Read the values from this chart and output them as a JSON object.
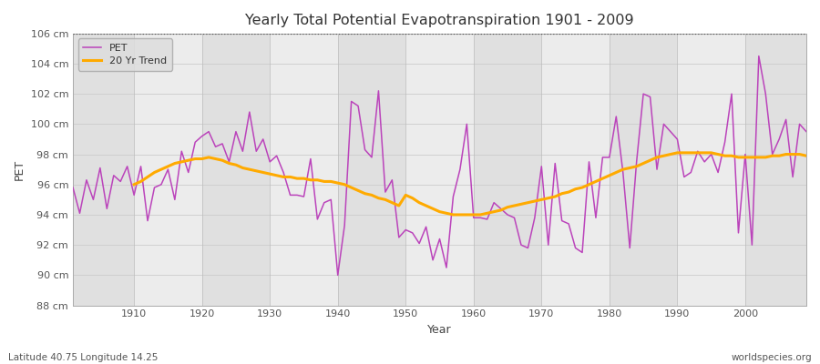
{
  "title": "Yearly Total Potential Evapotranspiration 1901 - 2009",
  "xlabel": "Year",
  "ylabel": "PET",
  "bottom_left_label": "Latitude 40.75 Longitude 14.25",
  "bottom_right_label": "worldspecies.org",
  "ylim": [
    88,
    106
  ],
  "yticks": [
    88,
    90,
    92,
    94,
    96,
    98,
    100,
    102,
    104,
    106
  ],
  "ytick_labels": [
    "88 cm",
    "90 cm",
    "92 cm",
    "94 cm",
    "96 cm",
    "98 cm",
    "100 cm",
    "102 cm",
    "104 cm",
    "106 cm"
  ],
  "xticks": [
    1910,
    1920,
    1930,
    1940,
    1950,
    1960,
    1970,
    1980,
    1990,
    2000
  ],
  "pet_color": "#bb44bb",
  "trend_color": "#ffaa00",
  "fig_bg_color": "#ffffff",
  "plot_bg_color": "#e8e8e8",
  "band_color_1": "#e0e0e0",
  "band_color_2": "#ececec",
  "pet_linewidth": 1.1,
  "trend_linewidth": 2.2,
  "years": [
    1901,
    1902,
    1903,
    1904,
    1905,
    1906,
    1907,
    1908,
    1909,
    1910,
    1911,
    1912,
    1913,
    1914,
    1915,
    1916,
    1917,
    1918,
    1919,
    1920,
    1921,
    1922,
    1923,
    1924,
    1925,
    1926,
    1927,
    1928,
    1929,
    1930,
    1931,
    1932,
    1933,
    1934,
    1935,
    1936,
    1937,
    1938,
    1939,
    1940,
    1941,
    1942,
    1943,
    1944,
    1945,
    1946,
    1947,
    1948,
    1949,
    1950,
    1951,
    1952,
    1953,
    1954,
    1955,
    1956,
    1957,
    1958,
    1959,
    1960,
    1961,
    1962,
    1963,
    1964,
    1965,
    1966,
    1967,
    1968,
    1969,
    1970,
    1971,
    1972,
    1973,
    1974,
    1975,
    1976,
    1977,
    1978,
    1979,
    1980,
    1981,
    1982,
    1983,
    1984,
    1985,
    1986,
    1987,
    1988,
    1989,
    1990,
    1991,
    1992,
    1993,
    1994,
    1995,
    1996,
    1997,
    1998,
    1999,
    2000,
    2001,
    2002,
    2003,
    2004,
    2005,
    2006,
    2007,
    2008,
    2009
  ],
  "pet": [
    95.8,
    94.1,
    96.3,
    95.0,
    97.1,
    94.4,
    96.6,
    96.2,
    97.2,
    95.3,
    97.2,
    93.6,
    95.8,
    96.0,
    97.0,
    95.0,
    98.2,
    96.8,
    98.8,
    99.2,
    99.5,
    98.5,
    98.7,
    97.5,
    99.5,
    98.2,
    100.8,
    98.2,
    99.0,
    97.5,
    97.9,
    96.8,
    95.3,
    95.3,
    95.2,
    97.7,
    93.7,
    94.8,
    95.0,
    90.0,
    93.3,
    101.5,
    101.2,
    98.3,
    97.8,
    102.2,
    95.5,
    96.3,
    92.5,
    93.0,
    92.8,
    92.1,
    93.2,
    91.0,
    92.4,
    90.5,
    95.2,
    97.0,
    100.0,
    93.8,
    93.8,
    93.7,
    94.8,
    94.4,
    94.0,
    93.8,
    92.0,
    91.8,
    93.8,
    97.2,
    92.0,
    97.4,
    93.6,
    93.4,
    91.8,
    91.5,
    97.5,
    93.8,
    97.8,
    97.8,
    100.5,
    96.8,
    91.8,
    97.5,
    102.0,
    101.8,
    97.0,
    100.0,
    99.5,
    99.0,
    96.5,
    96.8,
    98.2,
    97.5,
    98.0,
    96.8,
    98.8,
    102.0,
    92.8,
    98.0,
    92.0,
    104.5,
    102.0,
    98.0,
    99.0,
    100.3,
    96.5,
    100.0,
    99.5
  ],
  "trend": [
    null,
    null,
    null,
    null,
    null,
    null,
    null,
    null,
    null,
    96.0,
    96.2,
    96.5,
    96.8,
    97.0,
    97.2,
    97.4,
    97.5,
    97.6,
    97.7,
    97.7,
    97.8,
    97.7,
    97.6,
    97.4,
    97.3,
    97.1,
    97.0,
    96.9,
    96.8,
    96.7,
    96.6,
    96.5,
    96.5,
    96.4,
    96.4,
    96.3,
    96.3,
    96.2,
    96.2,
    96.1,
    96.0,
    95.8,
    95.6,
    95.4,
    95.3,
    95.1,
    95.0,
    94.8,
    94.6,
    95.3,
    95.1,
    94.8,
    94.6,
    94.4,
    94.2,
    94.1,
    94.0,
    94.0,
    94.0,
    94.0,
    94.0,
    94.1,
    94.2,
    94.3,
    94.5,
    94.6,
    94.7,
    94.8,
    94.9,
    95.0,
    95.1,
    95.2,
    95.4,
    95.5,
    95.7,
    95.8,
    96.0,
    96.2,
    96.4,
    96.6,
    96.8,
    97.0,
    97.1,
    97.2,
    97.4,
    97.6,
    97.8,
    97.9,
    98.0,
    98.1,
    98.1,
    98.1,
    98.1,
    98.1,
    98.1,
    98.0,
    97.9,
    97.9,
    97.8,
    97.8,
    97.8,
    97.8,
    97.8,
    97.9,
    97.9,
    98.0,
    98.0,
    98.0,
    97.9
  ]
}
